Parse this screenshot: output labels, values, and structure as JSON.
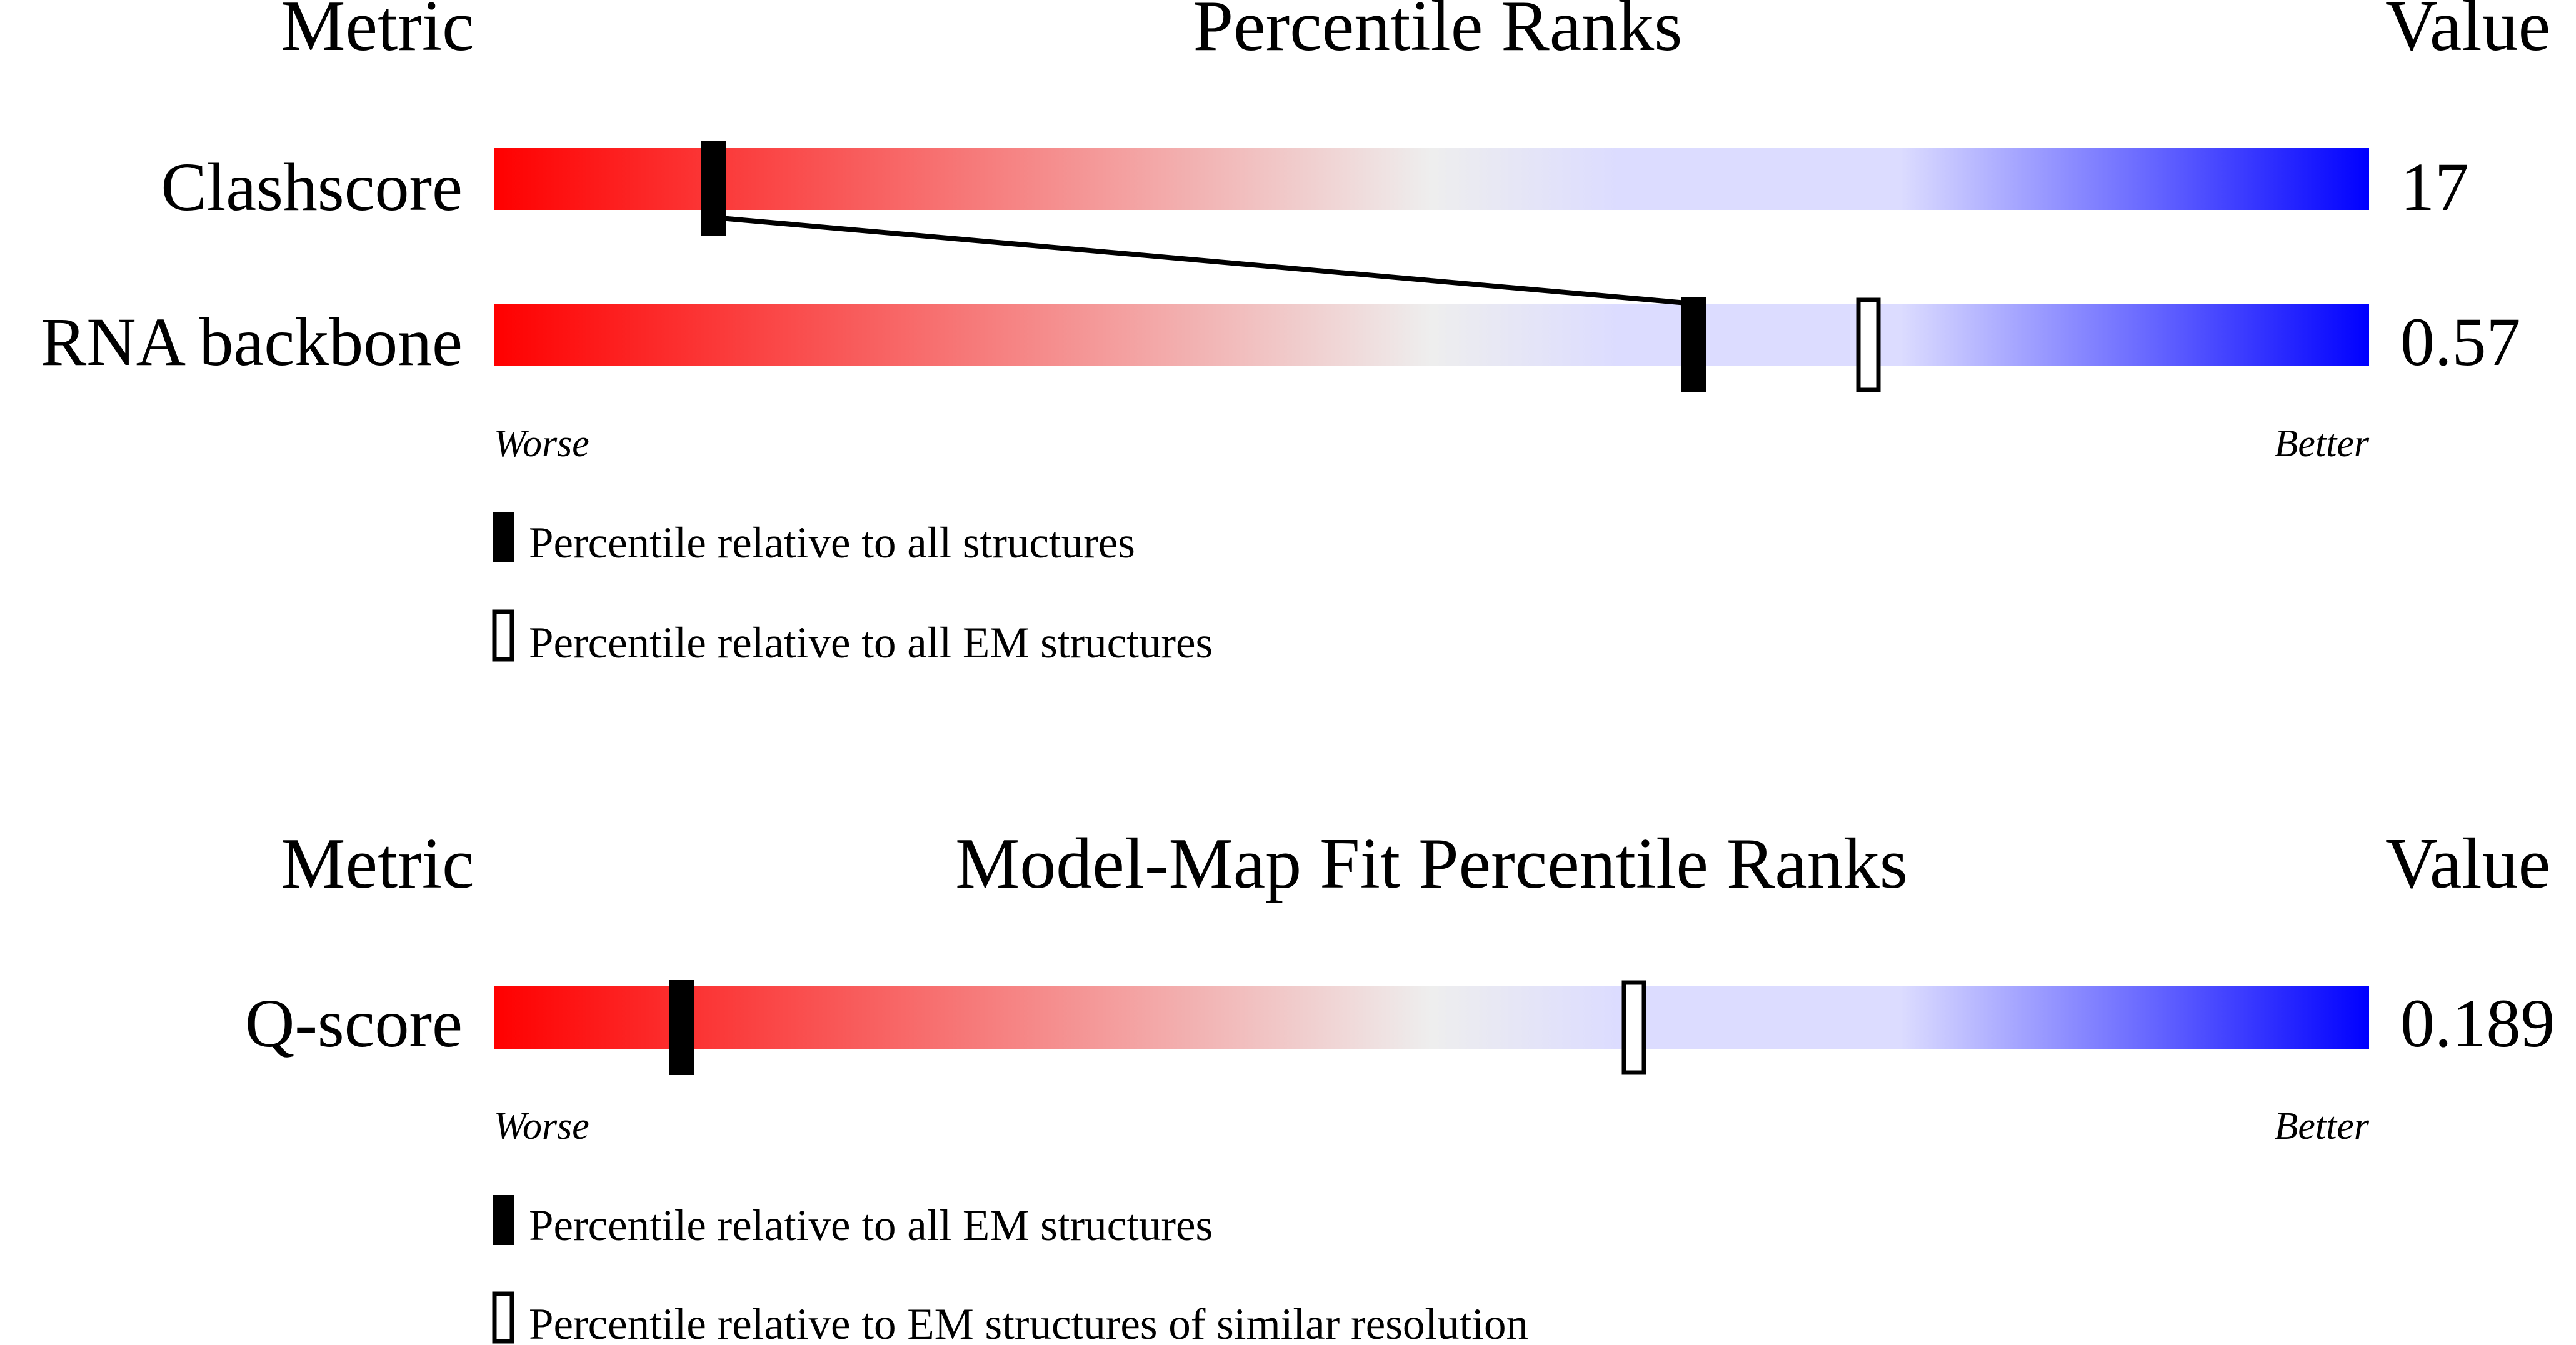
{
  "colors": {
    "worse": "#ff0000",
    "mid": "#eeeeee",
    "light_blue": "#dcdcff",
    "better": "#0000ff",
    "marker": "#000000"
  },
  "chart_data": [
    {
      "type": "percentile-rank bar",
      "headers": {
        "metric": "Metric",
        "title": "Percentile Ranks",
        "value": "Value"
      },
      "x_range": [
        0,
        100
      ],
      "rows": [
        {
          "metric": "Clashscore",
          "value": "17",
          "percentile_all": 11.7,
          "percentile_em": null
        },
        {
          "metric": "RNA backbone",
          "value": "0.57",
          "percentile_all": 64.0,
          "percentile_em": 73.3
        }
      ],
      "connector": "line joining the filled markers of consecutive rows",
      "axis_labels": {
        "worse": "Worse",
        "better": "Better"
      },
      "legend": [
        {
          "marker": "filled",
          "label": "Percentile relative to all structures"
        },
        {
          "marker": "open",
          "label": "Percentile relative to all EM structures"
        }
      ]
    },
    {
      "type": "percentile-rank bar",
      "headers": {
        "metric": "Metric",
        "title": "Model-Map Fit Percentile Ranks",
        "value": "Value"
      },
      "x_range": [
        0,
        100
      ],
      "rows": [
        {
          "metric": "Q-score",
          "value": "0.189",
          "percentile_all": 10.0,
          "percentile_em": 60.8
        }
      ],
      "axis_labels": {
        "worse": "Worse",
        "better": "Better"
      },
      "legend": [
        {
          "marker": "filled",
          "label": "Percentile relative to all EM structures"
        },
        {
          "marker": "open",
          "label": "Percentile relative to EM structures of similar resolution"
        }
      ]
    }
  ]
}
